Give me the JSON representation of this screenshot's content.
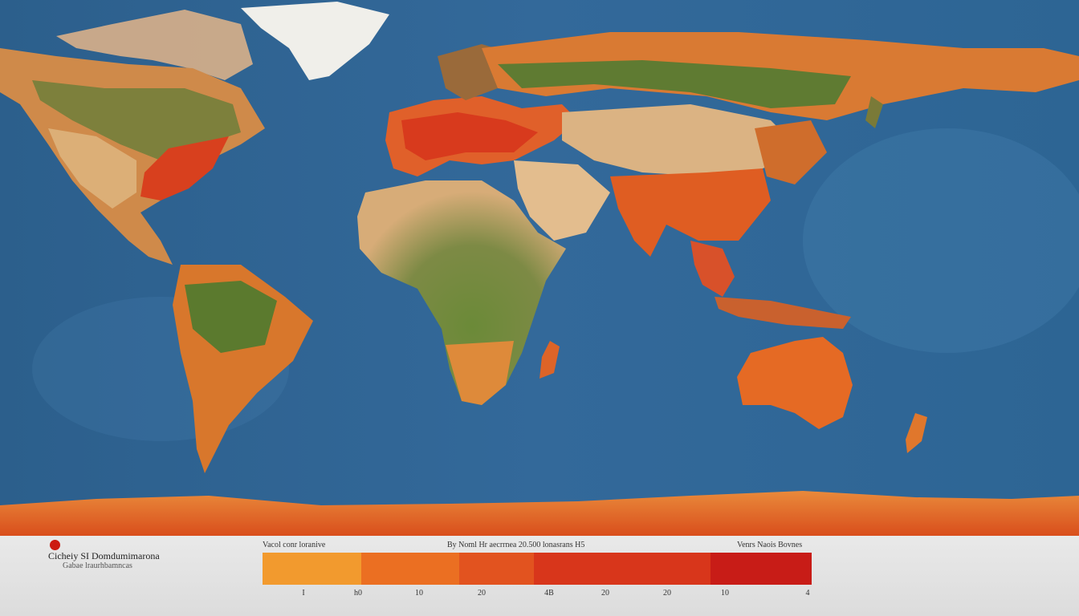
{
  "map": {
    "projection": "world map",
    "colors": {
      "ocean": "#2f6591",
      "ocean_light": "#4c85b3",
      "forest": "#5e7a32",
      "desert": "#d9b07c",
      "hot_orange": "#e3772a",
      "hot_red": "#d0301b",
      "ice": "#f2f2ee"
    }
  },
  "legend": {
    "title": "Cicheiy SI Domdumimarona",
    "subtitle": "Gabae lraurhbamncas",
    "scale_left_label": "Vacol conr loranive",
    "scale_mid_label": "By Noml Hr aecrrnea 20.500 lonasrans H5",
    "scale_right_label": "Venrs Naois Bovnes",
    "swatches": [
      {
        "color": "#f29a2e"
      },
      {
        "color": "#eb6f22"
      },
      {
        "color": "#e2531f"
      },
      {
        "color": "#d8361b"
      },
      {
        "color": "#c81c17"
      }
    ],
    "ticks": [
      "I",
      "h0",
      "10",
      "20",
      "4B",
      "20",
      "20",
      "10",
      "4"
    ]
  }
}
